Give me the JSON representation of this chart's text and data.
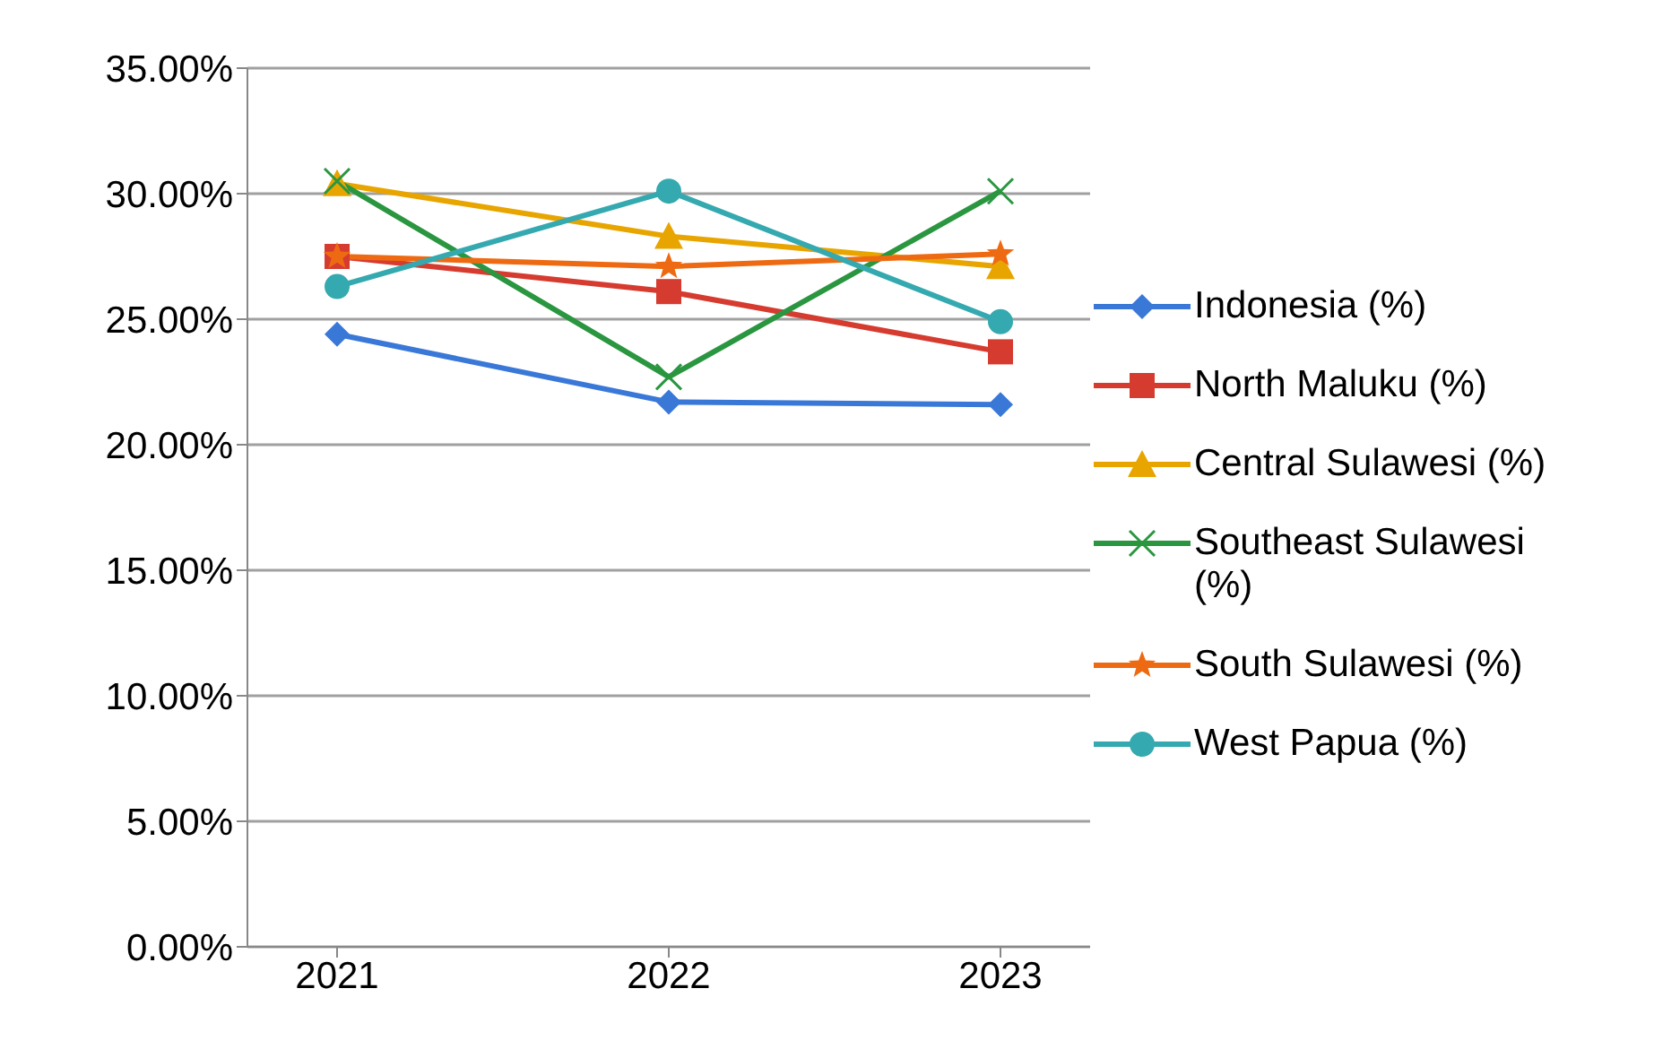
{
  "chart_data": {
    "type": "line",
    "categories": [
      "2021",
      "2022",
      "2023"
    ],
    "series": [
      {
        "name": "Indonesia (%)",
        "color": "#3a78d8",
        "marker": "diamond",
        "values": [
          24.4,
          21.7,
          21.6
        ]
      },
      {
        "name": "North Maluku (%)",
        "color": "#d63b2f",
        "marker": "square",
        "values": [
          27.5,
          26.1,
          23.7
        ]
      },
      {
        "name": "Central Sulawesi (%)",
        "color": "#e8a500",
        "marker": "triangle",
        "values": [
          30.4,
          28.3,
          27.1
        ]
      },
      {
        "name": "Southeast Sulawesi (%)",
        "color": "#2a9640",
        "marker": "cross",
        "values": [
          30.5,
          22.7,
          30.1
        ]
      },
      {
        "name": "South Sulawesi (%)",
        "color": "#ee6a12",
        "marker": "star",
        "values": [
          27.5,
          27.1,
          27.6
        ]
      },
      {
        "name": "West Papua (%)",
        "color": "#35a9b0",
        "marker": "circle",
        "values": [
          26.3,
          30.1,
          24.9
        ]
      }
    ],
    "ylim": [
      0,
      35
    ],
    "yticks": [
      {
        "value": 0,
        "label": "0.00%"
      },
      {
        "value": 5,
        "label": "5.00%"
      },
      {
        "value": 10,
        "label": "10.00%"
      },
      {
        "value": 15,
        "label": "15.00%"
      },
      {
        "value": 20,
        "label": "20.00%"
      },
      {
        "value": 25,
        "label": "25.00%"
      },
      {
        "value": 30,
        "label": "30.00%"
      },
      {
        "value": 35,
        "label": "35.00%"
      }
    ],
    "grid": "y",
    "legend": "right",
    "line_style": "solid"
  }
}
